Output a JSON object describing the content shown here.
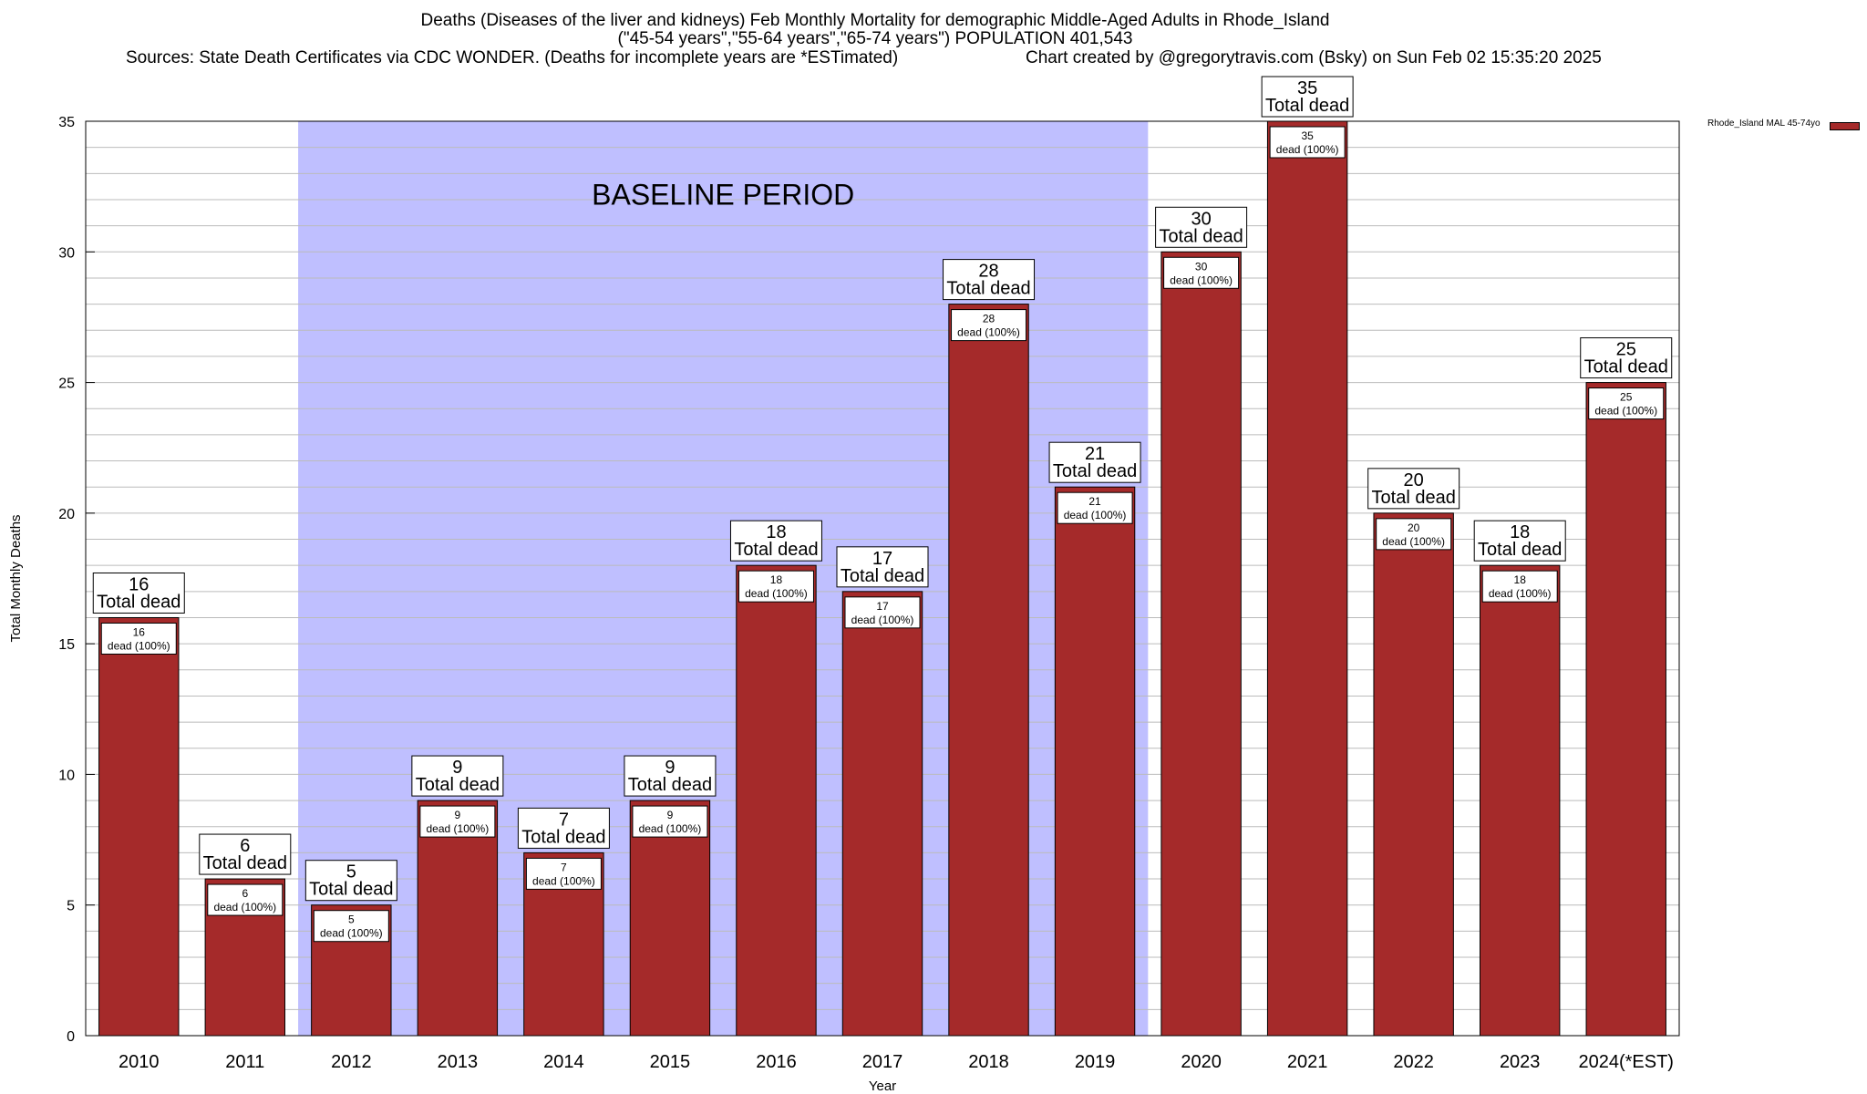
{
  "title": {
    "line1": "Deaths (Diseases of the liver and kidneys) Feb Monthly Mortality for demographic Middle-Aged Adults in Rhode_Island",
    "line2": "(\"45-54 years\",\"55-64 years\",\"65-74 years\") POPULATION 401,543",
    "line3": "Sources: State Death Certificates via CDC WONDER. (Deaths for incomplete years are *ESTimated)",
    "line4": "Chart created by @gregorytravis.com (Bsky) on Sun Feb 02 15:35:20 2025"
  },
  "colors": {
    "bar": "#a52a2a",
    "baseline_band": "#bfbfff",
    "grid": "#bbbbbb"
  },
  "chart_data": {
    "type": "bar",
    "xlabel": "Year",
    "ylabel": "Total Monthly Deaths",
    "ylim": [
      0,
      35
    ],
    "yticks": [
      0,
      5,
      10,
      15,
      20,
      25,
      30,
      35
    ],
    "grid": true,
    "legend_position": "top-right",
    "categories": [
      "2010",
      "2011",
      "2012",
      "2013",
      "2014",
      "2015",
      "2016",
      "2017",
      "2018",
      "2019",
      "2020",
      "2021",
      "2022",
      "2023",
      "2024(*EST)"
    ],
    "series": [
      {
        "name": "Rhode_Island MAL 45-74yo",
        "values": [
          16,
          6,
          5,
          9,
          7,
          9,
          18,
          17,
          28,
          21,
          30,
          35,
          20,
          18,
          25
        ]
      }
    ],
    "total_label_suffix": "Total dead",
    "inner_label_suffix": "dead (100%)",
    "annotation": {
      "text": "BASELINE PERIOD",
      "range_categories": [
        "2012",
        "2019"
      ]
    }
  }
}
